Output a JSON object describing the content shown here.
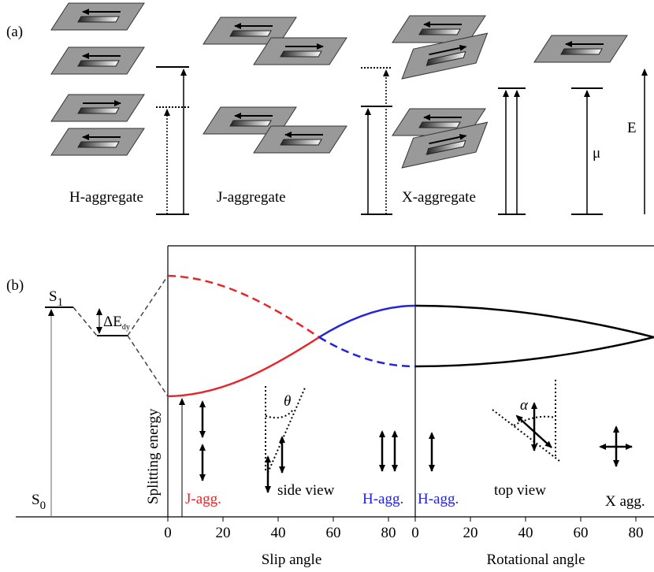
{
  "panel_a": {
    "label": "(a)",
    "aggregates": [
      "H-aggregate",
      "J-aggregate",
      "X-aggregate"
    ],
    "dipole_symbol": "μ",
    "energy_symbol": "E"
  },
  "panel_b": {
    "label": "(b)",
    "s1": {
      "main": "S",
      "sub": "1"
    },
    "delta": {
      "main": "ΔE",
      "sub": "dy"
    },
    "s0": {
      "main": "S",
      "sub": "0"
    },
    "y_label": "Splitting energy",
    "theta": "θ",
    "alpha": "α",
    "annotations": {
      "j_agg": "J-agg.",
      "side_view": "side view",
      "h_agg_left": "H-agg.",
      "h_agg_right": "H-agg.",
      "top_view": "top view",
      "x_agg": "X agg."
    },
    "slip_axis": {
      "label": "Slip angle",
      "ticks": [
        0,
        20,
        40,
        60,
        80
      ]
    },
    "rot_axis": {
      "label": "Rotational angle",
      "ticks": [
        0,
        20,
        40,
        60,
        80
      ]
    }
  }
}
